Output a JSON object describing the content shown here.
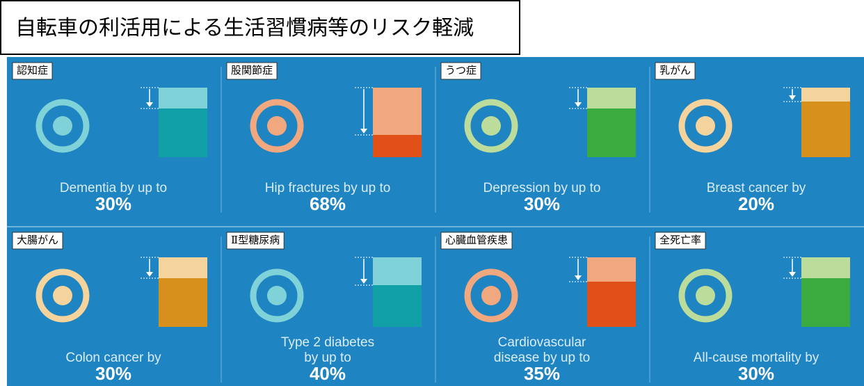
{
  "title": "自転車の利活用による生活習慣病等のリスク軽減",
  "cards": [
    {
      "tag": "認知症",
      "lines": [
        "Dementia by up to"
      ],
      "value": 30,
      "value_label": "30%",
      "light": "#7fd3d8",
      "dark": "#12a0a8",
      "icon": "#7fd3d8"
    },
    {
      "tag": "股関節症",
      "lines": [
        "Hip fractures by up to"
      ],
      "value": 68,
      "value_label": "68%",
      "light": "#f2a87e",
      "dark": "#e2501a",
      "icon": "#f2a87e"
    },
    {
      "tag": "うつ症",
      "lines": [
        "Depression by up to"
      ],
      "value": 30,
      "value_label": "30%",
      "light": "#bcdc9c",
      "dark": "#3aab3f",
      "icon": "#bcdc9c"
    },
    {
      "tag": "乳がん",
      "lines": [
        "Breast cancer by"
      ],
      "value": 20,
      "value_label": "20%",
      "light": "#f4d49c",
      "dark": "#d8901c",
      "icon": "#f4d49c"
    },
    {
      "tag": "大腸がん",
      "lines": [
        "Colon cancer by"
      ],
      "value": 30,
      "value_label": "30%",
      "light": "#f4d49c",
      "dark": "#d8901c",
      "icon": "#f4d49c"
    },
    {
      "tag": "Ⅱ型糖尿病",
      "lines": [
        "Type 2 diabetes",
        "by up to"
      ],
      "value": 40,
      "value_label": "40%",
      "light": "#7fd3d8",
      "dark": "#12a0a8",
      "icon": "#7fd3d8"
    },
    {
      "tag": "心臓血管疾患",
      "lines": [
        "Cardiovascular",
        "disease by up to"
      ],
      "value": 35,
      "value_label": "35%",
      "light": "#f2a87e",
      "dark": "#e2501a",
      "icon": "#f2a87e"
    },
    {
      "tag": "全死亡率",
      "lines": [
        "All-cause mortality by"
      ],
      "value": 30,
      "value_label": "30%",
      "light": "#bcdc9c",
      "dark": "#3aab3f",
      "icon": "#bcdc9c"
    }
  ]
}
